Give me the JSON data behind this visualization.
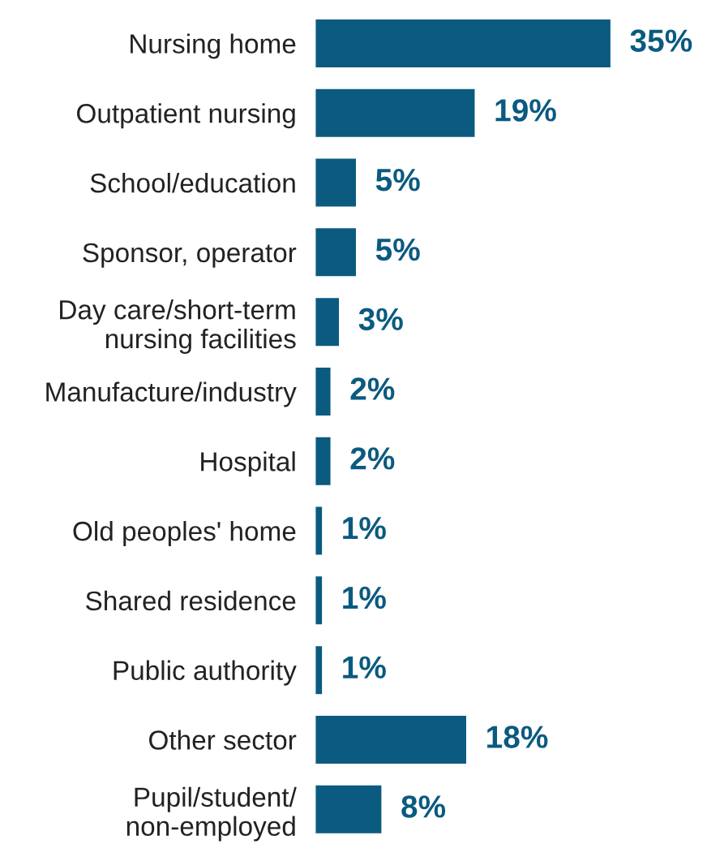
{
  "chart_data": {
    "type": "bar",
    "orientation": "horizontal",
    "categories": [
      "Nursing home",
      "Outpatient nursing",
      "School/education",
      "Sponsor, operator",
      "Day care/short-term\nnursing facilities",
      "Manufacture/industry",
      "Hospital",
      "Old peoples' home",
      "Shared residence",
      "Public authority",
      "Other sector",
      "Pupil/student/\nnon-employed"
    ],
    "values": [
      35,
      19,
      5,
      5,
      3,
      2,
      2,
      1,
      1,
      1,
      18,
      8
    ],
    "value_labels": [
      "35%",
      "19%",
      "5%",
      "5%",
      "3%",
      "2%",
      "2%",
      "1%",
      "1%",
      "1%",
      "18%",
      "8%"
    ],
    "color": "#0b5a80",
    "xlim": [
      0,
      35
    ],
    "grid": false,
    "legend": false
  }
}
